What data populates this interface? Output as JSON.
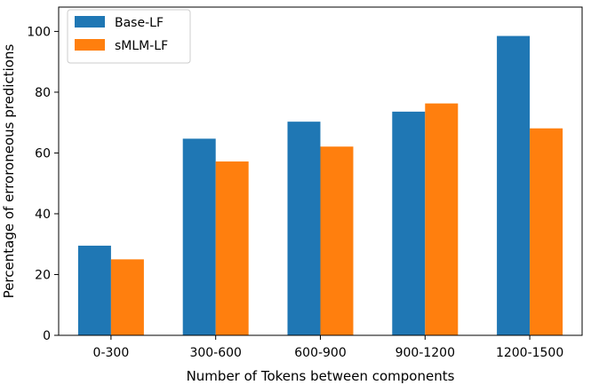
{
  "chart_data": {
    "type": "bar",
    "categories": [
      "0-300",
      "300-600",
      "600-900",
      "900-1200",
      "1200-1500"
    ],
    "series": [
      {
        "name": "Base-LF",
        "color": "#1f77b4",
        "values": [
          29.5,
          64.7,
          70.3,
          73.6,
          98.5
        ]
      },
      {
        "name": "sMLM-LF",
        "color": "#ff7f0e",
        "values": [
          25.0,
          57.2,
          62.1,
          76.3,
          68.1
        ]
      }
    ],
    "title": "",
    "xlabel": "Number of Tokens between components",
    "ylabel": "Percentage of erroroneous predictions",
    "ylim": [
      0,
      108
    ],
    "yticks": [
      0,
      20,
      40,
      60,
      80,
      100
    ],
    "grid": false,
    "legend_position": "top-left"
  }
}
